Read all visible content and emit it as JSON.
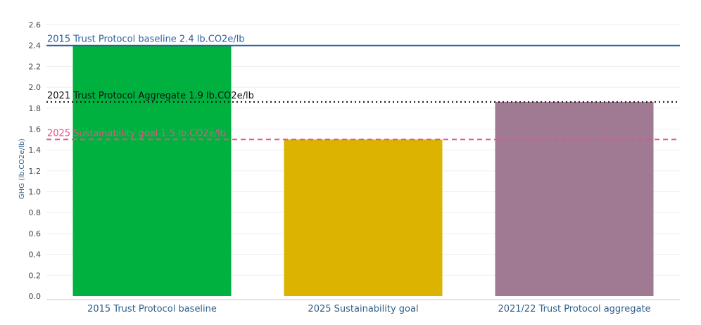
{
  "chart_data": {
    "type": "bar",
    "title": "",
    "xlabel": "",
    "ylabel": "GHG (lb.CO2e/lb)",
    "ylim": [
      0,
      2.6
    ],
    "yticks": [
      "0.0",
      "0.2",
      "0.4",
      "0.6",
      "0.8",
      "1.0",
      "1.2",
      "1.4",
      "1.6",
      "1.8",
      "2.0",
      "2.2",
      "2.4",
      "2.6"
    ],
    "grid": true,
    "categories": [
      "2015 Trust Protocol baseline",
      "2025 Sustainability goal",
      "2021/22 Trust Protocol aggregate"
    ],
    "values": [
      2.4,
      1.5,
      1.86
    ],
    "bar_colors": [
      "#00b140",
      "#dbb300",
      "#a07a93"
    ],
    "reference_lines": [
      {
        "label": "2015 Trust Protocol baseline 2.4 lb.CO2e/lb",
        "value": 2.4,
        "style": "solid",
        "color": "#2b5f9e",
        "label_color": "#2b5f9e"
      },
      {
        "label": "2021 Trust Protocol  Aggregate 1.9 lb.CO2e/lb",
        "value": 1.86,
        "style": "dotted",
        "color": "#111111",
        "label_color": "#111111"
      },
      {
        "label": "2025 Sustainability goal 1.5 lb.CO2e/lb",
        "value": 1.5,
        "style": "dashed",
        "color": "#e8508a",
        "label_color": "#e8508a"
      }
    ]
  }
}
